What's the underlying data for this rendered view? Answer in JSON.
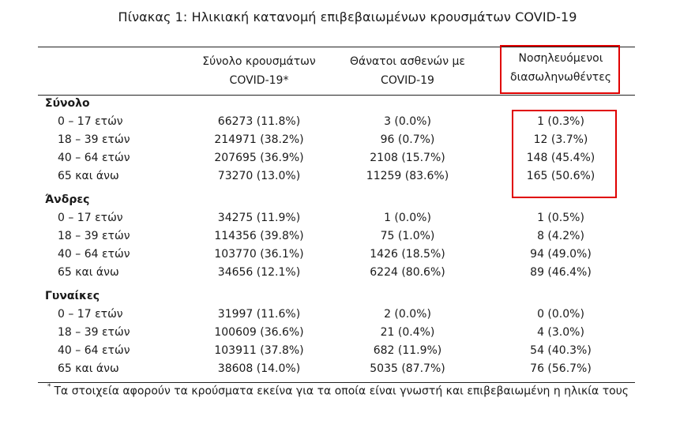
{
  "title": "Πίνακας 1: Ηλικιακή κατανομή επιβεβαιωμένων κρουσμάτων COVID-19",
  "columns": [
    {
      "line1": "Σύνολο κρουσμάτων",
      "line2": "COVID-19*"
    },
    {
      "line1": "Θάνατοι ασθενών με",
      "line2": "COVID-19"
    },
    {
      "line1": "Νοσηλευόμενοι",
      "line2": "διασωληνωθέντες"
    }
  ],
  "groups": [
    {
      "name": "Σύνολο",
      "rows": [
        {
          "label": "0 – 17 ετών",
          "cases": "66273 (11.8%)",
          "deaths": "3 (0.0%)",
          "intubated": "1 (0.3%)"
        },
        {
          "label": "18 – 39 ετών",
          "cases": "214971 (38.2%)",
          "deaths": "96 (0.7%)",
          "intubated": "12 (3.7%)"
        },
        {
          "label": "40 – 64 ετών",
          "cases": "207695 (36.9%)",
          "deaths": "2108 (15.7%)",
          "intubated": "148 (45.4%)"
        },
        {
          "label": "65 και άνω",
          "cases": "73270 (13.0%)",
          "deaths": "11259 (83.6%)",
          "intubated": "165 (50.6%)"
        }
      ]
    },
    {
      "name": "Άνδρες",
      "rows": [
        {
          "label": "0 – 17 ετών",
          "cases": "34275 (11.9%)",
          "deaths": "1 (0.0%)",
          "intubated": "1 (0.5%)"
        },
        {
          "label": "18 – 39 ετών",
          "cases": "114356 (39.8%)",
          "deaths": "75 (1.0%)",
          "intubated": "8 (4.2%)"
        },
        {
          "label": "40 – 64 ετών",
          "cases": "103770 (36.1%)",
          "deaths": "1426 (18.5%)",
          "intubated": "94 (49.0%)"
        },
        {
          "label": "65 και άνω",
          "cases": "34656 (12.1%)",
          "deaths": "6224 (80.6%)",
          "intubated": "89 (46.4%)"
        }
      ]
    },
    {
      "name": "Γυναίκες",
      "rows": [
        {
          "label": "0 – 17 ετών",
          "cases": "31997 (11.6%)",
          "deaths": "2 (0.0%)",
          "intubated": "0 (0.0%)"
        },
        {
          "label": "18 – 39 ετών",
          "cases": "100609 (36.6%)",
          "deaths": "21 (0.4%)",
          "intubated": "4 (3.0%)"
        },
        {
          "label": "40 – 64 ετών",
          "cases": "103911 (37.8%)",
          "deaths": "682 (11.9%)",
          "intubated": "54 (40.3%)"
        },
        {
          "label": "65 και άνω",
          "cases": "38608 (14.0%)",
          "deaths": "5035 (87.7%)",
          "intubated": "76 (56.7%)"
        }
      ]
    }
  ],
  "footnote": {
    "marker": "*",
    "text": "Τα στοιχεία αφορούν τα κρούσματα εκείνα για τα οποία είναι γνωστή και επιβεβαιωμένη η ηλικία τους"
  },
  "highlight_color": "#e00000"
}
